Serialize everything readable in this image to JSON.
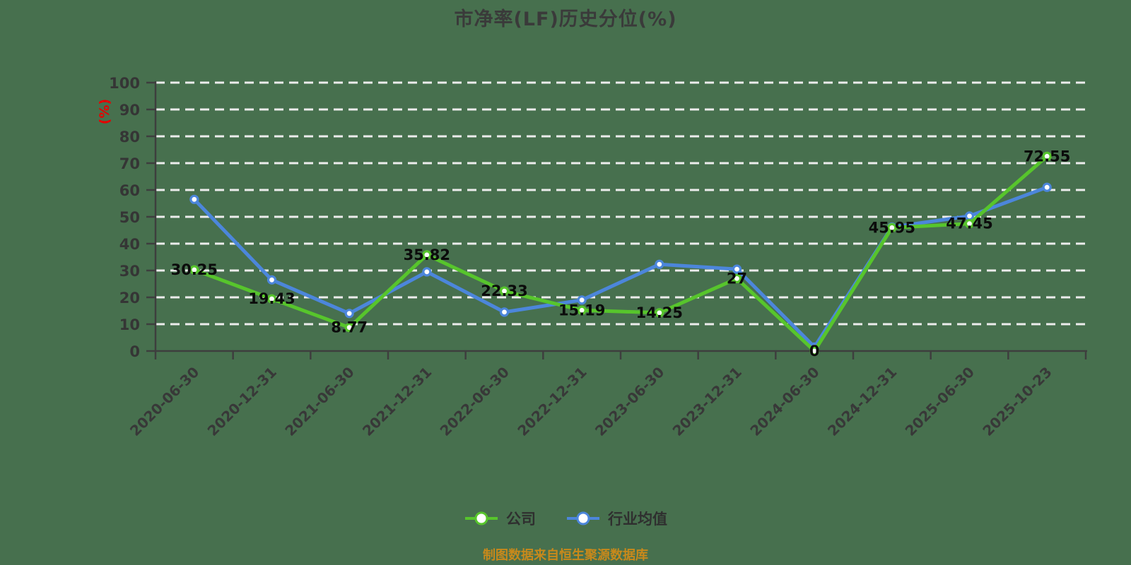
{
  "title": "市净率(LF)历史分位(%)",
  "footer": "制图数据来自恒生聚源数据库",
  "colors": {
    "background": "#47704E",
    "grid": "#ECECEC",
    "axis": "#3E3E3E",
    "tick_text": "#353535",
    "data_label": "#0B0B0B",
    "unit_text": "#E60000",
    "footer_text": "#C8891B",
    "legend_text": "#2F2F2F",
    "company": "#57C52C",
    "industry": "#4C86DB"
  },
  "legend": {
    "items": [
      {
        "key": "company",
        "label": "公司",
        "color": "#57C52C"
      },
      {
        "key": "industry",
        "label": "行业均值",
        "color": "#4C86DB"
      }
    ]
  },
  "chart_data": {
    "type": "line",
    "title": "市净率(LF)历史分位(%)",
    "xlabel": "",
    "ylabel": "(%)",
    "ylim": [
      0,
      100
    ],
    "y_tick_step": 10,
    "grid": "horizontal-dashed",
    "legend_position": "bottom-center",
    "categories": [
      "2020-06-30",
      "2020-12-31",
      "2021-06-30",
      "2021-12-31",
      "2022-06-30",
      "2022-12-31",
      "2023-06-30",
      "2023-12-31",
      "2024-06-30",
      "2024-12-31",
      "2025-06-30",
      "2025-10-23"
    ],
    "series": [
      {
        "key": "company",
        "name": "公司",
        "color": "#57C52C",
        "show_labels": true,
        "values": [
          30.25,
          19.43,
          8.77,
          35.82,
          22.33,
          15.19,
          14.25,
          27,
          0,
          45.95,
          47.45,
          72.55
        ],
        "point_labels": [
          "30.25",
          "19.43",
          "8.77",
          "35.82",
          "22.33",
          "15.19",
          "14.25",
          "27",
          "0",
          "45.95",
          "47.45",
          "72.55"
        ]
      },
      {
        "key": "industry",
        "name": "行业均值",
        "color": "#4C86DB",
        "show_labels": false,
        "values": [
          56.5,
          26.5,
          14,
          29.5,
          14.5,
          19,
          32.3,
          30.5,
          1.5,
          46.2,
          50.3,
          61
        ]
      }
    ]
  }
}
